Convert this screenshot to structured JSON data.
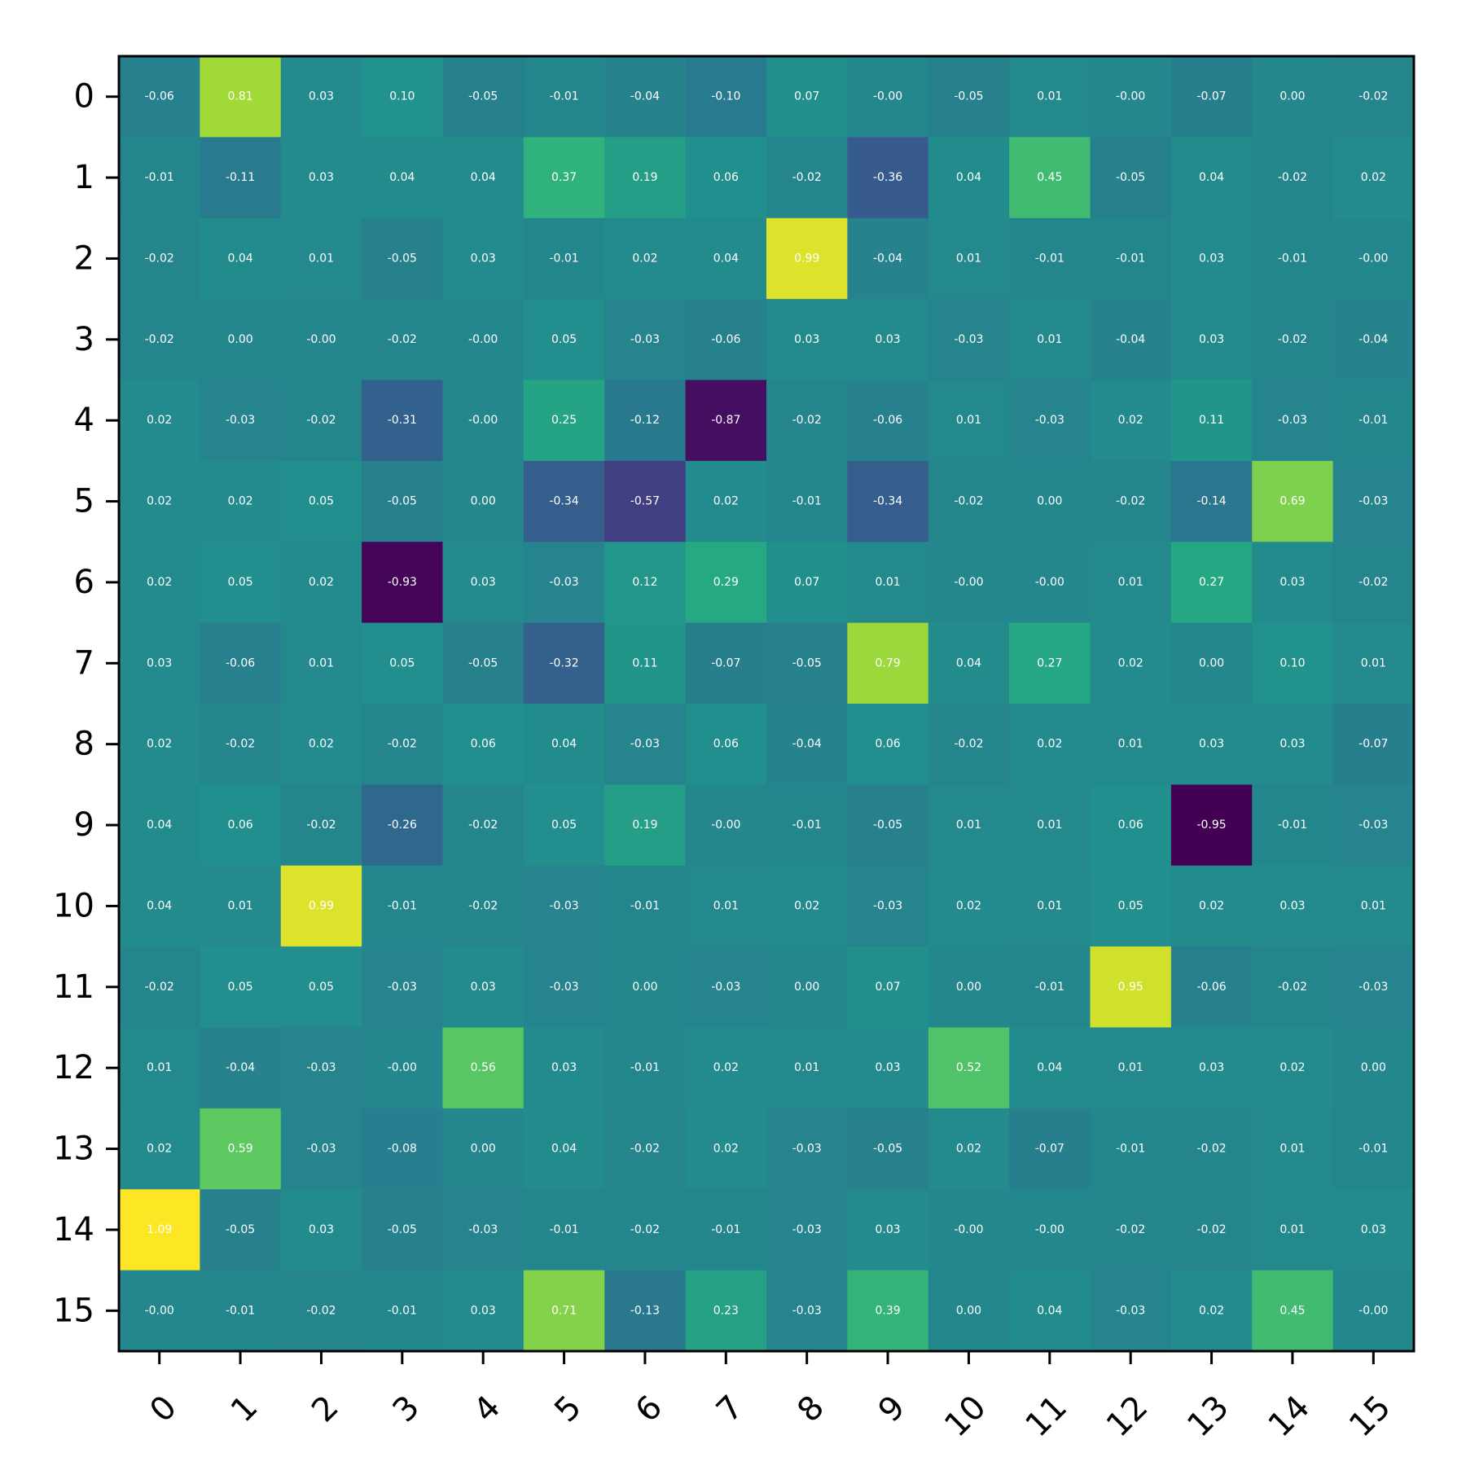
{
  "chart_data": {
    "type": "heatmap",
    "title": "",
    "xlabel": "",
    "ylabel": "",
    "colormap": "viridis",
    "vmin": -0.95,
    "vmax": 1.09,
    "x_tick_labels": [
      "0",
      "1",
      "2",
      "3",
      "4",
      "5",
      "6",
      "7",
      "8",
      "9",
      "10",
      "11",
      "12",
      "13",
      "14",
      "15"
    ],
    "y_tick_labels": [
      "0",
      "1",
      "2",
      "3",
      "4",
      "5",
      "6",
      "7",
      "8",
      "9",
      "10",
      "11",
      "12",
      "13",
      "14",
      "15"
    ],
    "values": [
      [
        -0.06,
        0.81,
        0.03,
        0.1,
        -0.05,
        -0.01,
        -0.04,
        -0.1,
        0.07,
        -0.0,
        -0.05,
        0.01,
        -0.0,
        -0.07,
        0.0,
        -0.02
      ],
      [
        -0.01,
        -0.11,
        0.03,
        0.04,
        0.04,
        0.37,
        0.19,
        0.06,
        -0.02,
        -0.36,
        0.04,
        0.45,
        -0.05,
        0.04,
        -0.02,
        0.02
      ],
      [
        -0.02,
        0.04,
        0.01,
        -0.05,
        0.03,
        -0.01,
        0.02,
        0.04,
        0.99,
        -0.04,
        0.01,
        -0.01,
        -0.01,
        0.03,
        -0.01,
        -0.0
      ],
      [
        -0.02,
        0.0,
        -0.0,
        -0.02,
        -0.0,
        0.05,
        -0.03,
        -0.06,
        0.03,
        0.03,
        -0.03,
        0.01,
        -0.04,
        0.03,
        -0.02,
        -0.04
      ],
      [
        0.02,
        -0.03,
        -0.02,
        -0.31,
        -0.0,
        0.25,
        -0.12,
        -0.87,
        -0.02,
        -0.06,
        0.01,
        -0.03,
        0.02,
        0.11,
        -0.03,
        -0.01
      ],
      [
        0.02,
        0.02,
        0.05,
        -0.05,
        0.0,
        -0.34,
        -0.57,
        0.02,
        -0.01,
        -0.34,
        -0.02,
        0.0,
        -0.02,
        -0.14,
        0.69,
        -0.03
      ],
      [
        0.02,
        0.05,
        0.02,
        -0.93,
        0.03,
        -0.03,
        0.12,
        0.29,
        0.07,
        0.01,
        -0.0,
        -0.0,
        0.01,
        0.27,
        0.03,
        -0.02
      ],
      [
        0.03,
        -0.06,
        0.01,
        0.05,
        -0.05,
        -0.32,
        0.11,
        -0.07,
        -0.05,
        0.79,
        0.04,
        0.27,
        0.02,
        0.0,
        0.1,
        0.01
      ],
      [
        0.02,
        -0.02,
        0.02,
        -0.02,
        0.06,
        0.04,
        -0.03,
        0.06,
        -0.04,
        0.06,
        -0.02,
        0.02,
        0.01,
        0.03,
        0.03,
        -0.07
      ],
      [
        0.04,
        0.06,
        -0.02,
        -0.26,
        -0.02,
        0.05,
        0.19,
        -0.0,
        -0.01,
        -0.05,
        0.01,
        0.01,
        0.06,
        -0.95,
        -0.01,
        -0.03
      ],
      [
        0.04,
        0.01,
        0.99,
        -0.01,
        -0.02,
        -0.03,
        -0.01,
        0.01,
        0.02,
        -0.03,
        0.02,
        0.01,
        0.05,
        0.02,
        0.03,
        0.01
      ],
      [
        -0.02,
        0.05,
        0.05,
        -0.03,
        0.03,
        -0.03,
        0.0,
        -0.03,
        0.0,
        0.07,
        0.0,
        -0.01,
        0.95,
        -0.06,
        -0.02,
        -0.03
      ],
      [
        0.01,
        -0.04,
        -0.03,
        -0.0,
        0.56,
        0.03,
        -0.01,
        0.02,
        0.01,
        0.03,
        0.52,
        0.04,
        0.01,
        0.03,
        0.02,
        0.0
      ],
      [
        0.02,
        0.59,
        -0.03,
        -0.08,
        0.0,
        0.04,
        -0.02,
        0.02,
        -0.03,
        -0.05,
        0.02,
        -0.07,
        -0.01,
        -0.02,
        0.01,
        -0.01
      ],
      [
        1.09,
        -0.05,
        0.03,
        -0.05,
        -0.03,
        -0.01,
        -0.02,
        -0.01,
        -0.03,
        0.03,
        -0.0,
        -0.0,
        -0.02,
        -0.02,
        0.01,
        0.03
      ],
      [
        -0.0,
        -0.01,
        -0.02,
        -0.01,
        0.03,
        0.71,
        -0.13,
        0.23,
        -0.03,
        0.39,
        0.0,
        0.04,
        -0.03,
        0.02,
        0.45,
        -0.0
      ]
    ],
    "labels": [
      [
        "-0.06",
        "0.81",
        "0.03",
        "0.10",
        "-0.05",
        "-0.01",
        "-0.04",
        "-0.10",
        "0.07",
        "-0.00",
        "-0.05",
        "0.01",
        "-0.00",
        "-0.07",
        "0.00",
        "-0.02"
      ],
      [
        "-0.01",
        "-0.11",
        "0.03",
        "0.04",
        "0.04",
        "0.37",
        "0.19",
        "0.06",
        "-0.02",
        "-0.36",
        "0.04",
        "0.45",
        "-0.05",
        "0.04",
        "-0.02",
        "0.02"
      ],
      [
        "-0.02",
        "0.04",
        "0.01",
        "-0.05",
        "0.03",
        "-0.01",
        "0.02",
        "0.04",
        "0.99",
        "-0.04",
        "0.01",
        "-0.01",
        "-0.01",
        "0.03",
        "-0.01",
        "-0.00"
      ],
      [
        "-0.02",
        "0.00",
        "-0.00",
        "-0.02",
        "-0.00",
        "0.05",
        "-0.03",
        "-0.06",
        "0.03",
        "0.03",
        "-0.03",
        "0.01",
        "-0.04",
        "0.03",
        "-0.02",
        "-0.04"
      ],
      [
        "0.02",
        "-0.03",
        "-0.02",
        "-0.31",
        "-0.00",
        "0.25",
        "-0.12",
        "-0.87",
        "-0.02",
        "-0.06",
        "0.01",
        "-0.03",
        "0.02",
        "0.11",
        "-0.03",
        "-0.01"
      ],
      [
        "0.02",
        "0.02",
        "0.05",
        "-0.05",
        "0.00",
        "-0.34",
        "-0.57",
        "0.02",
        "-0.01",
        "-0.34",
        "-0.02",
        "0.00",
        "-0.02",
        "-0.14",
        "0.69",
        "-0.03"
      ],
      [
        "0.02",
        "0.05",
        "0.02",
        "-0.93",
        "0.03",
        "-0.03",
        "0.12",
        "0.29",
        "0.07",
        "0.01",
        "-0.00",
        "-0.00",
        "0.01",
        "0.27",
        "0.03",
        "-0.02"
      ],
      [
        "0.03",
        "-0.06",
        "0.01",
        "0.05",
        "-0.05",
        "-0.32",
        "0.11",
        "-0.07",
        "-0.05",
        "0.79",
        "0.04",
        "0.27",
        "0.02",
        "0.00",
        "0.10",
        "0.01"
      ],
      [
        "0.02",
        "-0.02",
        "0.02",
        "-0.02",
        "0.06",
        "0.04",
        "-0.03",
        "0.06",
        "-0.04",
        "0.06",
        "-0.02",
        "0.02",
        "0.01",
        "0.03",
        "0.03",
        "-0.07"
      ],
      [
        "0.04",
        "0.06",
        "-0.02",
        "-0.26",
        "-0.02",
        "0.05",
        "0.19",
        "-0.00",
        "-0.01",
        "-0.05",
        "0.01",
        "0.01",
        "0.06",
        "-0.95",
        "-0.01",
        "-0.03"
      ],
      [
        "0.04",
        "0.01",
        "0.99",
        "-0.01",
        "-0.02",
        "-0.03",
        "-0.01",
        "0.01",
        "0.02",
        "-0.03",
        "0.02",
        "0.01",
        "0.05",
        "0.02",
        "0.03",
        "0.01"
      ],
      [
        "-0.02",
        "0.05",
        "0.05",
        "-0.03",
        "0.03",
        "-0.03",
        "0.00",
        "-0.03",
        "0.00",
        "0.07",
        "0.00",
        "-0.01",
        "0.95",
        "-0.06",
        "-0.02",
        "-0.03"
      ],
      [
        "0.01",
        "-0.04",
        "-0.03",
        "-0.00",
        "0.56",
        "0.03",
        "-0.01",
        "0.02",
        "0.01",
        "0.03",
        "0.52",
        "0.04",
        "0.01",
        "0.03",
        "0.02",
        "0.00"
      ],
      [
        "0.02",
        "0.59",
        "-0.03",
        "-0.08",
        "0.00",
        "0.04",
        "-0.02",
        "0.02",
        "-0.03",
        "-0.05",
        "0.02",
        "-0.07",
        "-0.01",
        "-0.02",
        "0.01",
        "-0.01"
      ],
      [
        "1.09",
        "-0.05",
        "0.03",
        "-0.05",
        "-0.03",
        "-0.01",
        "-0.02",
        "-0.01",
        "-0.03",
        "0.03",
        "-0.00",
        "-0.00",
        "-0.02",
        "-0.02",
        "0.01",
        "0.03"
      ],
      [
        "-0.00",
        "-0.01",
        "-0.02",
        "-0.01",
        "0.03",
        "0.71",
        "-0.13",
        "0.23",
        "-0.03",
        "0.39",
        "0.00",
        "0.04",
        "-0.03",
        "0.02",
        "0.45",
        "-0.00"
      ]
    ]
  }
}
